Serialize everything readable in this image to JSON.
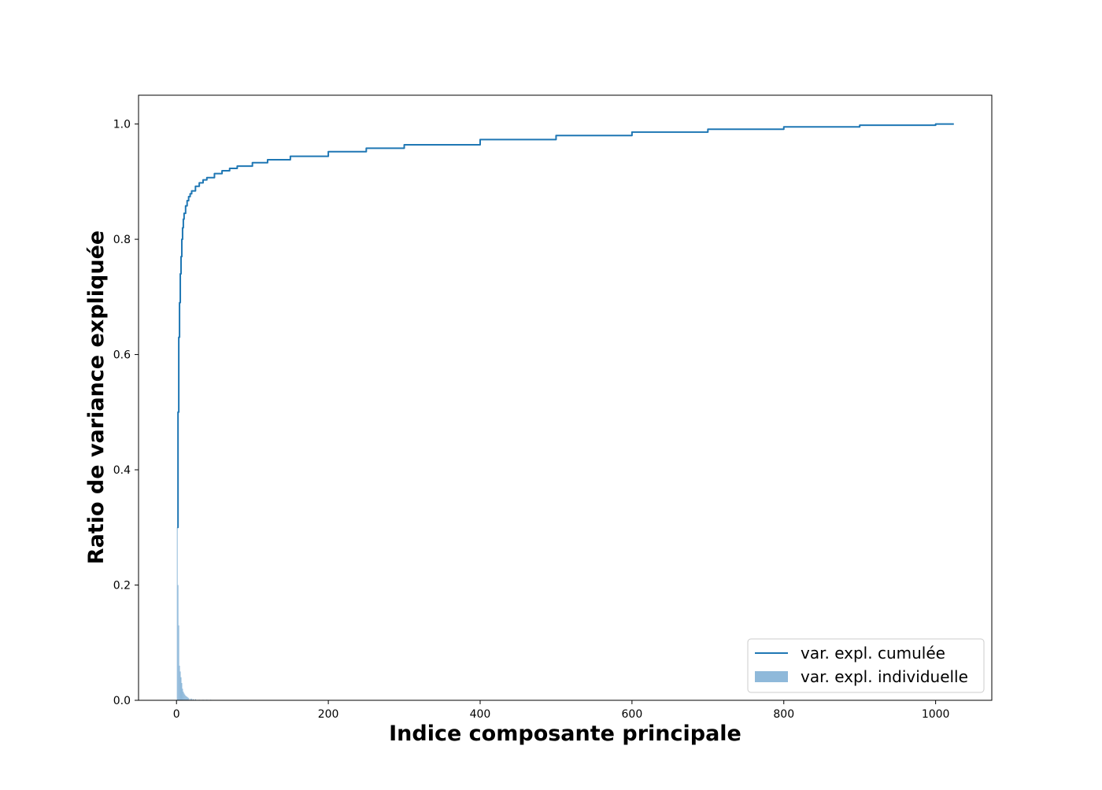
{
  "chart_data": {
    "type": "line",
    "title": "",
    "xlabel": "Indice composante principale",
    "ylabel": "Ratio de variance expliquée",
    "xlim": [
      -50,
      1074
    ],
    "ylim": [
      0.0,
      1.05
    ],
    "xticks": [
      0,
      200,
      400,
      600,
      800,
      1000
    ],
    "yticks": [
      0.0,
      0.2,
      0.4,
      0.6,
      0.8,
      1.0
    ],
    "xtick_labels": [
      "0",
      "200",
      "400",
      "600",
      "800",
      "1000"
    ],
    "ytick_labels": [
      "0.0",
      "0.2",
      "0.4",
      "0.6",
      "0.8",
      "1.0"
    ],
    "grid": false,
    "legend_position": "lower-right",
    "colors": {
      "line": "#1f77b4",
      "bars": "#8fb9da",
      "axes": "#000000"
    },
    "series": [
      {
        "name": "var. expl. cumulée",
        "kind": "step-line",
        "x": [
          1,
          2,
          3,
          4,
          5,
          6,
          7,
          8,
          9,
          10,
          12,
          14,
          16,
          18,
          20,
          25,
          30,
          35,
          40,
          50,
          60,
          70,
          80,
          100,
          120,
          150,
          200,
          250,
          300,
          400,
          500,
          600,
          700,
          800,
          900,
          1000,
          1024
        ],
        "y": [
          0.3,
          0.5,
          0.63,
          0.69,
          0.74,
          0.77,
          0.8,
          0.82,
          0.835,
          0.845,
          0.858,
          0.867,
          0.874,
          0.879,
          0.884,
          0.892,
          0.898,
          0.903,
          0.907,
          0.914,
          0.919,
          0.923,
          0.927,
          0.933,
          0.938,
          0.944,
          0.952,
          0.958,
          0.964,
          0.973,
          0.98,
          0.986,
          0.991,
          0.995,
          0.998,
          1.0,
          1.0
        ]
      },
      {
        "name": "var. expl. individuelle",
        "kind": "bar",
        "x": [
          1,
          2,
          3,
          4,
          5,
          6,
          7,
          8,
          9,
          10,
          11,
          12,
          13,
          14,
          15,
          16,
          18,
          20,
          22,
          25,
          30,
          35,
          40,
          45
        ],
        "y": [
          0.3,
          0.2,
          0.13,
          0.06,
          0.05,
          0.04,
          0.03,
          0.02,
          0.015,
          0.012,
          0.01,
          0.008,
          0.007,
          0.006,
          0.005,
          0.004,
          0.003,
          0.003,
          0.002,
          0.002,
          0.001,
          0.001,
          0.001,
          0.001
        ]
      }
    ]
  }
}
